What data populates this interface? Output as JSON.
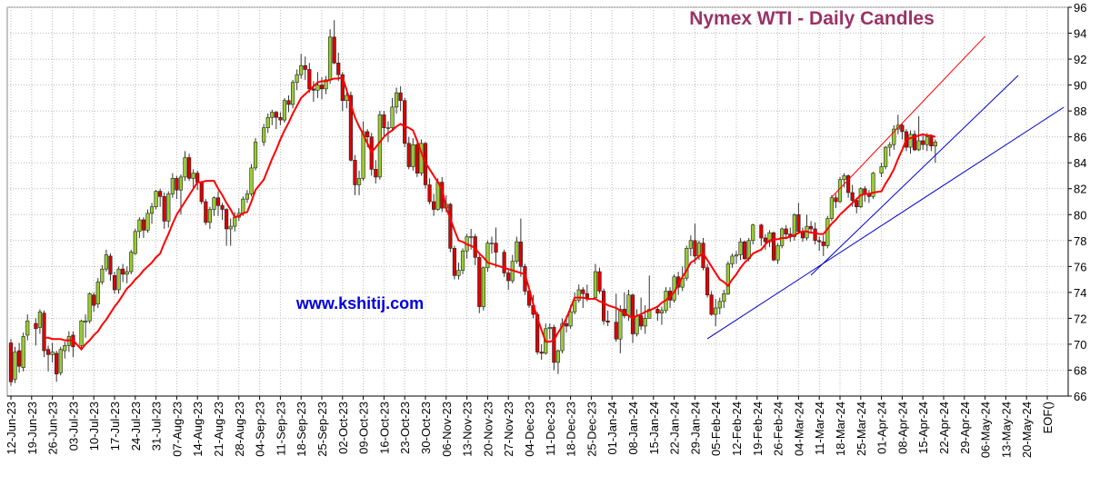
{
  "chart_data": {
    "type": "candlestick",
    "title": "Nymex  WTI - Daily Candles",
    "title_color": "#993366",
    "watermark": "www.kshitij.com",
    "watermark_color": "#0000dd",
    "ylim": [
      66,
      96
    ],
    "yticks": [
      66,
      68,
      70,
      72,
      74,
      76,
      78,
      80,
      82,
      84,
      86,
      88,
      90,
      92,
      94,
      96
    ],
    "grid": true,
    "up_color": "#99cc33",
    "down_color": "#dd0000",
    "xtick_labels": [
      "12-Jun-23",
      "19-Jun-23",
      "26-Jun-23",
      "03-Jul-23",
      "10-Jul-23",
      "17-Jul-23",
      "24-Jul-23",
      "31-Jul-23",
      "07-Aug-23",
      "14-Aug-23",
      "21-Aug-23",
      "28-Aug-23",
      "04-Sep-23",
      "11-Sep-23",
      "18-Sep-23",
      "25-Sep-23",
      "02-Oct-23",
      "09-Oct-23",
      "16-Oct-23",
      "23-Oct-23",
      "30-Oct-23",
      "06-Nov-23",
      "13-Nov-23",
      "20-Nov-23",
      "27-Nov-23",
      "04-Dec-23",
      "11-Dec-23",
      "18-Dec-23",
      "25-Dec-23",
      "01-Jan-24",
      "08-Jan-24",
      "15-Jan-24",
      "22-Jan-24",
      "29-Jan-24",
      "05-Feb-24",
      "12-Feb-24",
      "19-Feb-24",
      "26-Feb-24",
      "04-Mar-24",
      "11-Mar-24",
      "18-Mar-24",
      "25-Mar-24",
      "01-Apr-24",
      "08-Apr-24",
      "15-Apr-24",
      "22-Apr-24",
      "29-Apr-24",
      "06-May-24",
      "13-May-24",
      "20-May-24",
      "EOF()"
    ],
    "x": [
      "12-Jun-23",
      "13-Jun-23",
      "14-Jun-23",
      "15-Jun-23",
      "16-Jun-23",
      "20-Jun-23",
      "21-Jun-23",
      "22-Jun-23",
      "23-Jun-23",
      "26-Jun-23",
      "27-Jun-23",
      "28-Jun-23",
      "29-Jun-23",
      "30-Jun-23",
      "03-Jul-23",
      "05-Jul-23",
      "06-Jul-23",
      "07-Jul-23",
      "10-Jul-23",
      "11-Jul-23",
      "12-Jul-23",
      "13-Jul-23",
      "14-Jul-23",
      "17-Jul-23",
      "18-Jul-23",
      "19-Jul-23",
      "20-Jul-23",
      "21-Jul-23",
      "24-Jul-23",
      "25-Jul-23",
      "26-Jul-23",
      "27-Jul-23",
      "28-Jul-23",
      "31-Jul-23",
      "01-Aug-23",
      "02-Aug-23",
      "03-Aug-23",
      "04-Aug-23",
      "07-Aug-23",
      "08-Aug-23",
      "09-Aug-23",
      "10-Aug-23",
      "11-Aug-23",
      "14-Aug-23",
      "15-Aug-23",
      "16-Aug-23",
      "17-Aug-23",
      "18-Aug-23",
      "21-Aug-23",
      "22-Aug-23",
      "23-Aug-23",
      "24-Aug-23",
      "25-Aug-23",
      "28-Aug-23",
      "29-Aug-23",
      "30-Aug-23",
      "31-Aug-23",
      "01-Sep-23",
      "05-Sep-23",
      "06-Sep-23",
      "07-Sep-23",
      "08-Sep-23",
      "11-Sep-23",
      "12-Sep-23",
      "13-Sep-23",
      "14-Sep-23",
      "15-Sep-23",
      "18-Sep-23",
      "19-Sep-23",
      "20-Sep-23",
      "21-Sep-23",
      "22-Sep-23",
      "25-Sep-23",
      "26-Sep-23",
      "27-Sep-23",
      "28-Sep-23",
      "29-Sep-23",
      "02-Oct-23",
      "03-Oct-23",
      "04-Oct-23",
      "05-Oct-23",
      "06-Oct-23",
      "09-Oct-23",
      "10-Oct-23",
      "11-Oct-23",
      "12-Oct-23",
      "13-Oct-23",
      "16-Oct-23",
      "17-Oct-23",
      "18-Oct-23",
      "19-Oct-23",
      "20-Oct-23",
      "23-Oct-23",
      "24-Oct-23",
      "25-Oct-23",
      "26-Oct-23",
      "27-Oct-23",
      "30-Oct-23",
      "31-Oct-23",
      "01-Nov-23",
      "02-Nov-23",
      "03-Nov-23",
      "06-Nov-23",
      "07-Nov-23",
      "08-Nov-23",
      "09-Nov-23",
      "10-Nov-23",
      "13-Nov-23",
      "14-Nov-23",
      "15-Nov-23",
      "16-Nov-23",
      "17-Nov-23",
      "20-Nov-23",
      "21-Nov-23",
      "22-Nov-23",
      "24-Nov-23",
      "27-Nov-23",
      "28-Nov-23",
      "29-Nov-23",
      "30-Nov-23",
      "01-Dec-23",
      "04-Dec-23",
      "05-Dec-23",
      "06-Dec-23",
      "07-Dec-23",
      "08-Dec-23",
      "11-Dec-23",
      "12-Dec-23",
      "13-Dec-23",
      "14-Dec-23",
      "15-Dec-23",
      "18-Dec-23",
      "19-Dec-23",
      "20-Dec-23",
      "21-Dec-23",
      "22-Dec-23",
      "26-Dec-23",
      "27-Dec-23",
      "28-Dec-23",
      "29-Dec-23",
      "02-Jan-24",
      "03-Jan-24",
      "04-Jan-24",
      "05-Jan-24",
      "08-Jan-24",
      "09-Jan-24",
      "10-Jan-24",
      "11-Jan-24",
      "12-Jan-24",
      "16-Jan-24",
      "17-Jan-24",
      "18-Jan-24",
      "19-Jan-24",
      "22-Jan-24",
      "23-Jan-24",
      "24-Jan-24",
      "25-Jan-24",
      "26-Jan-24",
      "29-Jan-24",
      "30-Jan-24",
      "31-Jan-24",
      "01-Feb-24",
      "02-Feb-24",
      "05-Feb-24",
      "06-Feb-24",
      "07-Feb-24",
      "08-Feb-24",
      "09-Feb-24",
      "12-Feb-24",
      "13-Feb-24",
      "14-Feb-24",
      "15-Feb-24",
      "16-Feb-24",
      "20-Feb-24",
      "21-Feb-24",
      "22-Feb-24",
      "23-Feb-24",
      "26-Feb-24",
      "27-Feb-24",
      "28-Feb-24",
      "29-Feb-24",
      "01-Mar-24",
      "04-Mar-24",
      "05-Mar-24",
      "06-Mar-24",
      "07-Mar-24",
      "08-Mar-24",
      "11-Mar-24",
      "12-Mar-24",
      "13-Mar-24",
      "14-Mar-24",
      "15-Mar-24",
      "18-Mar-24",
      "19-Mar-24",
      "20-Mar-24",
      "21-Mar-24",
      "22-Mar-24",
      "25-Mar-24",
      "26-Mar-24",
      "27-Mar-24",
      "28-Mar-24",
      "01-Apr-24",
      "02-Apr-24",
      "03-Apr-24",
      "04-Apr-24",
      "05-Apr-24",
      "08-Apr-24",
      "09-Apr-24",
      "10-Apr-24",
      "11-Apr-24",
      "12-Apr-24",
      "15-Apr-24",
      "16-Apr-24",
      "17-Apr-24",
      "18-Apr-24"
    ],
    "open": [
      70.1,
      67.3,
      69.5,
      68.2,
      70.7,
      71.6,
      71.3,
      72.4,
      69.6,
      69.2,
      69.3,
      67.8,
      69.5,
      69.9,
      70.7,
      69.9,
      71.7,
      71.8,
      73.8,
      73.1,
      74.8,
      75.8,
      76.8,
      75.3,
      74.2,
      75.8,
      75.4,
      75.6,
      77.0,
      78.7,
      79.6,
      78.8,
      80.1,
      80.6,
      81.8,
      81.4,
      79.5,
      81.6,
      82.8,
      81.9,
      82.9,
      84.4,
      82.8,
      83.2,
      82.5,
      81.0,
      79.4,
      80.4,
      81.3,
      80.7,
      80.4,
      78.9,
      79.1,
      79.8,
      80.1,
      81.2,
      81.6,
      83.6,
      85.6,
      86.7,
      87.5,
      87.9,
      87.5,
      87.3,
      88.8,
      88.5,
      90.2,
      90.8,
      91.5,
      91.2,
      89.7,
      89.6,
      90.0,
      89.7,
      90.4,
      93.7,
      91.7,
      90.8,
      88.8,
      89.2,
      84.2,
      82.3,
      82.8,
      86.4,
      86.0,
      83.5,
      82.9,
      87.7,
      86.7,
      86.7,
      88.3,
      89.4,
      88.8,
      85.5,
      83.7,
      85.4,
      83.2,
      85.5,
      82.3,
      81.0,
      80.4,
      82.5,
      80.5,
      80.8,
      77.4,
      75.3,
      75.7,
      77.2,
      78.3,
      78.3,
      76.7,
      72.9,
      75.9,
      77.8,
      77.8,
      77.1,
      75.5,
      74.9,
      76.4,
      77.9,
      76.0,
      74.1,
      73.0,
      72.3,
      69.4,
      69.3,
      71.2,
      71.3,
      68.6,
      69.5,
      71.6,
      71.4,
      72.5,
      73.4,
      74.2,
      73.9,
      73.6,
      75.6,
      74.1,
      71.8,
      71.7,
      70.4,
      72.7,
      72.2,
      73.8,
      70.8,
      72.2,
      71.4,
      72.0,
      72.7,
      72.4,
      72.6,
      74.1,
      73.4,
      75.2,
      74.4,
      75.1,
      77.4,
      78.0,
      76.8,
      77.8,
      75.9,
      73.8,
      72.3,
      72.8,
      73.3,
      73.9,
      76.2,
      76.8,
      76.9,
      77.9,
      76.6,
      78.0,
      79.2,
      78.2,
      77.9,
      78.6,
      76.5,
      77.6,
      78.9,
      78.5,
      78.3,
      80.0,
      78.7,
      78.2,
      79.1,
      78.9,
      78.0,
      77.9,
      77.6,
      79.7,
      81.3,
      81.0,
      82.7,
      83.0,
      81.7,
      81.1,
      80.6,
      82.0,
      81.6,
      81.4,
      83.2,
      83.7,
      85.2,
      85.4,
      86.6,
      86.9,
      86.4,
      85.2,
      86.2,
      85.0,
      85.7,
      85.4,
      86.0,
      85.3
    ],
    "high": [
      70.4,
      69.8,
      70.1,
      70.9,
      72.3,
      72.0,
      72.7,
      72.6,
      69.9,
      70.1,
      69.5,
      69.8,
      70.2,
      71.0,
      71.0,
      71.9,
      72.3,
      74.0,
      74.0,
      75.1,
      76.1,
      77.3,
      77.0,
      75.6,
      76.0,
      76.2,
      76.0,
      77.3,
      78.9,
      79.8,
      79.8,
      80.4,
      80.9,
      81.9,
      82.0,
      81.7,
      81.8,
      83.2,
      83.0,
      83.1,
      84.9,
      84.7,
      83.5,
      83.4,
      82.6,
      81.2,
      80.6,
      81.4,
      81.8,
      80.9,
      80.5,
      79.7,
      80.2,
      80.5,
      81.4,
      81.9,
      83.9,
      85.9,
      87.0,
      87.8,
      88.1,
      88.0,
      87.9,
      89.0,
      89.2,
      90.4,
      91.2,
      92.4,
      92.2,
      91.7,
      90.3,
      91.0,
      90.6,
      90.7,
      94.3,
      95.0,
      92.5,
      91.0,
      89.8,
      89.5,
      84.6,
      83.4,
      87.2,
      86.6,
      86.3,
      84.2,
      88.0,
      88.0,
      87.2,
      89.0,
      89.8,
      89.9,
      89.0,
      86.0,
      85.9,
      85.6,
      85.8,
      85.6,
      82.8,
      81.6,
      82.8,
      82.9,
      81.5,
      80.9,
      77.6,
      76.3,
      77.4,
      78.5,
      78.9,
      78.5,
      76.9,
      76.0,
      78.0,
      78.3,
      79.0,
      77.3,
      75.8,
      76.9,
      78.3,
      79.7,
      76.2,
      74.5,
      73.8,
      72.5,
      70.0,
      71.6,
      71.6,
      71.5,
      69.6,
      72.0,
      72.2,
      73.0,
      74.0,
      74.6,
      74.4,
      74.6,
      76.2,
      75.9,
      74.3,
      72.6,
      73.9,
      73.0,
      74.0,
      74.2,
      73.9,
      72.7,
      73.6,
      73.0,
      75.3,
      73.0,
      72.9,
      74.4,
      74.4,
      75.4,
      75.6,
      76.0,
      77.6,
      78.4,
      79.3,
      78.0,
      78.2,
      76.2,
      74.1,
      73.5,
      73.6,
      74.2,
      76.4,
      77.0,
      77.2,
      78.2,
      78.0,
      78.2,
      79.3,
      79.3,
      78.5,
      78.8,
      78.7,
      77.8,
      79.0,
      79.2,
      79.0,
      80.1,
      80.9,
      79.0,
      80.0,
      79.5,
      79.4,
      78.3,
      78.4,
      79.9,
      81.5,
      81.6,
      82.9,
      83.2,
      83.1,
      82.3,
      81.3,
      82.1,
      82.2,
      81.9,
      83.3,
      84.0,
      85.3,
      85.6,
      86.9,
      87.7,
      87.0,
      86.6,
      86.5,
      86.5,
      87.6,
      86.2,
      86.3,
      86.2,
      85.8
    ],
    "low": [
      66.8,
      67.0,
      67.8,
      67.9,
      70.3,
      69.9,
      70.8,
      69.0,
      67.9,
      68.6,
      67.1,
      67.6,
      68.9,
      69.4,
      69.0,
      69.6,
      70.5,
      71.6,
      72.5,
      72.8,
      74.6,
      75.6,
      74.9,
      73.9,
      73.9,
      74.8,
      74.7,
      75.4,
      76.9,
      78.2,
      78.2,
      78.6,
      79.3,
      80.4,
      80.6,
      78.9,
      79.0,
      81.3,
      81.2,
      80.0,
      82.6,
      82.6,
      82.0,
      81.9,
      80.8,
      79.2,
      78.9,
      79.9,
      79.9,
      79.6,
      77.6,
      77.6,
      78.7,
      79.5,
      79.9,
      80.9,
      81.4,
      83.4,
      85.3,
      86.3,
      86.9,
      86.6,
      86.9,
      87.1,
      87.9,
      88.2,
      89.6,
      90.5,
      90.4,
      89.4,
      88.7,
      89.0,
      88.9,
      89.3,
      90.1,
      91.6,
      90.3,
      88.0,
      88.2,
      84.1,
      81.5,
      81.5,
      82.6,
      85.2,
      83.0,
      82.4,
      82.7,
      86.0,
      85.6,
      86.5,
      87.8,
      88.0,
      85.2,
      83.5,
      83.4,
      82.9,
      83.0,
      82.0,
      80.8,
      79.9,
      80.3,
      80.2,
      80.2,
      77.1,
      75.0,
      75.0,
      75.4,
      76.6,
      77.3,
      76.1,
      72.4,
      72.6,
      75.6,
      77.0,
      75.9,
      75.2,
      74.2,
      74.7,
      76.2,
      75.2,
      73.8,
      72.8,
      72.0,
      69.2,
      68.8,
      69.2,
      70.4,
      68.0,
      67.7,
      69.3,
      70.9,
      71.2,
      72.3,
      73.2,
      72.8,
      73.3,
      73.5,
      73.9,
      71.5,
      71.4,
      70.2,
      69.3,
      72.0,
      71.8,
      70.1,
      70.6,
      71.1,
      70.8,
      72.0,
      71.8,
      71.5,
      72.4,
      72.8,
      73.2,
      73.8,
      74.1,
      74.9,
      76.8,
      76.2,
      76.5,
      75.7,
      73.6,
      72.2,
      71.4,
      72.3,
      72.8,
      73.8,
      75.9,
      76.2,
      76.5,
      76.5,
      76.4,
      77.7,
      77.6,
      77.3,
      77.5,
      76.4,
      76.2,
      77.4,
      78.1,
      77.9,
      78.0,
      78.5,
      77.9,
      78.0,
      78.6,
      77.7,
      77.2,
      76.8,
      77.4,
      79.5,
      80.5,
      80.9,
      82.1,
      81.3,
      80.6,
      80.1,
      80.5,
      81.0,
      80.9,
      81.2,
      82.9,
      83.5,
      84.5,
      85.0,
      86.2,
      85.8,
      84.9,
      84.7,
      84.9,
      84.9,
      85.0,
      84.9,
      84.9,
      84.0
    ],
    "close": [
      67.1,
      69.4,
      68.3,
      70.6,
      71.8,
      71.2,
      72.5,
      69.5,
      69.2,
      69.4,
      67.7,
      69.6,
      69.9,
      70.6,
      69.8,
      71.8,
      71.8,
      73.9,
      73.0,
      74.8,
      75.8,
      76.9,
      75.4,
      74.2,
      75.8,
      75.4,
      75.6,
      77.1,
      78.7,
      79.6,
      78.8,
      80.1,
      80.6,
      81.8,
      81.4,
      79.5,
      81.6,
      82.8,
      81.9,
      82.9,
      84.4,
      82.8,
      83.2,
      82.5,
      81.0,
      79.4,
      80.4,
      81.3,
      80.7,
      80.4,
      78.9,
      79.1,
      79.8,
      80.1,
      81.2,
      81.6,
      83.6,
      85.6,
      86.7,
      87.5,
      87.9,
      87.5,
      87.3,
      88.8,
      88.5,
      90.2,
      90.8,
      91.5,
      91.2,
      89.7,
      89.6,
      90.0,
      89.7,
      90.4,
      93.7,
      91.7,
      90.8,
      88.8,
      89.2,
      84.2,
      82.3,
      82.8,
      86.4,
      86.0,
      83.5,
      82.9,
      87.7,
      86.7,
      86.7,
      88.3,
      89.4,
      88.8,
      85.5,
      83.7,
      85.4,
      83.2,
      85.5,
      82.3,
      81.0,
      80.4,
      82.5,
      80.5,
      80.8,
      77.4,
      75.3,
      75.7,
      77.2,
      78.3,
      78.3,
      76.7,
      72.9,
      75.9,
      77.8,
      77.8,
      77.1,
      75.5,
      74.9,
      76.4,
      77.9,
      76.0,
      74.1,
      73.0,
      72.3,
      69.4,
      69.3,
      71.2,
      71.3,
      68.6,
      69.5,
      71.6,
      71.4,
      72.5,
      73.4,
      74.2,
      73.9,
      73.6,
      75.6,
      74.1,
      71.8,
      71.7,
      70.4,
      72.7,
      72.2,
      73.8,
      70.8,
      72.2,
      71.4,
      72.0,
      72.7,
      72.4,
      72.6,
      74.1,
      73.4,
      75.2,
      74.4,
      75.1,
      77.4,
      78.0,
      76.8,
      77.8,
      75.9,
      73.8,
      72.3,
      72.8,
      73.3,
      73.9,
      76.2,
      76.8,
      76.9,
      77.9,
      76.6,
      78.0,
      79.2,
      78.2,
      77.9,
      78.6,
      76.5,
      77.6,
      78.9,
      78.5,
      78.3,
      80.0,
      78.7,
      78.2,
      79.1,
      78.9,
      78.0,
      77.9,
      77.6,
      79.7,
      81.3,
      81.0,
      82.7,
      83.0,
      81.7,
      81.1,
      80.6,
      82.0,
      81.6,
      81.4,
      83.2,
      83.7,
      85.2,
      85.4,
      86.6,
      86.9,
      86.4,
      85.2,
      86.2,
      85.0,
      85.7,
      85.4,
      86.0,
      85.3,
      85.6
    ],
    "moving_average": {
      "color": "#ff0000",
      "values": [
        null,
        null,
        null,
        null,
        null,
        null,
        null,
        70.5,
        70.5,
        70.4,
        70.4,
        70.4,
        70.3,
        70.3,
        70.3,
        69.6,
        70.0,
        70.3,
        70.7,
        71.0,
        71.5,
        71.9,
        72.4,
        72.9,
        73.3,
        73.8,
        74.3,
        74.6,
        75.0,
        75.3,
        75.7,
        76.0,
        76.3,
        76.7,
        77.0,
        77.8,
        78.5,
        79.3,
        80.0,
        80.5,
        81.0,
        81.5,
        82.0,
        82.5,
        82.5,
        82.6,
        82.6,
        82.6,
        82.0,
        81.5,
        80.9,
        80.4,
        79.8,
        79.9,
        80.1,
        80.2,
        81.0,
        81.9,
        82.7,
        83.5,
        84.3,
        85.0,
        85.8,
        86.5,
        87.1,
        87.8,
        88.4,
        89.0,
        89.3,
        89.6,
        89.9,
        90.2,
        90.3,
        90.3,
        90.4,
        90.5,
        90.5,
        90.6,
        89.6,
        88.5,
        87.5,
        86.8,
        86.2,
        85.5,
        84.8,
        85.2,
        85.6,
        86.0,
        86.3,
        86.5,
        86.8,
        87.0,
        86.8,
        86.7,
        86.5,
        85.7,
        84.8,
        84.0,
        83.5,
        83.0,
        82.5,
        82.0,
        80.5,
        79.7,
        78.8,
        78.0,
        77.9,
        77.7,
        77.6,
        77.4,
        77.0,
        76.7,
        76.3,
        76.2,
        76.1,
        75.9,
        75.8,
        75.7,
        75.6,
        75.5,
        75.4,
        74.3,
        73.1,
        72.0,
        71.1,
        70.2,
        70.2,
        70.3,
        70.9,
        71.4,
        72.0,
        72.8,
        73.6,
        73.6,
        73.6,
        73.5,
        73.5,
        73.3,
        73.2,
        73.0,
        72.8,
        72.6,
        72.4,
        72.2,
        72.0,
        72.2,
        72.3,
        72.5,
        72.6,
        72.9,
        73.2,
        73.4,
        73.7,
        74.0,
        74.6,
        75.2,
        75.7,
        76.3,
        76.5,
        76.8,
        77.0,
        76.5,
        76.0,
        75.5,
        75.0,
        74.8,
        74.5,
        75.0,
        75.4,
        75.9,
        76.3,
        76.6,
        77.0,
        77.3,
        77.7,
        78.0,
        78.1,
        78.1,
        78.2,
        78.2,
        78.3,
        78.4,
        78.6,
        78.7,
        78.7,
        78.6,
        78.6,
        78.5,
        78.5,
        78.9,
        79.3,
        79.6,
        80.0,
        80.3,
        80.6,
        80.9,
        81.2,
        81.5,
        81.6,
        81.6,
        81.7,
        81.8,
        82.4,
        82.9,
        83.5,
        84.3,
        85.0,
        85.8,
        85.9,
        86.0,
        86.1,
        86.2,
        86.1,
        86.1,
        86.0
      ]
    },
    "trend_lines": [
      {
        "color": "#ff0000",
        "x": [
          "14-Mar-24",
          "06-May-24"
        ],
        "y": [
          81.35,
          93.76
        ]
      },
      {
        "color": "#0000cc",
        "x": [
          "07-Mar-24",
          "16-May-24"
        ],
        "y": [
          75.33,
          90.74
        ]
      },
      {
        "color": "#0000cc",
        "x": [
          "01-Feb-24",
          "31-May-24"
        ],
        "y": [
          70.42,
          88.29
        ]
      }
    ]
  }
}
